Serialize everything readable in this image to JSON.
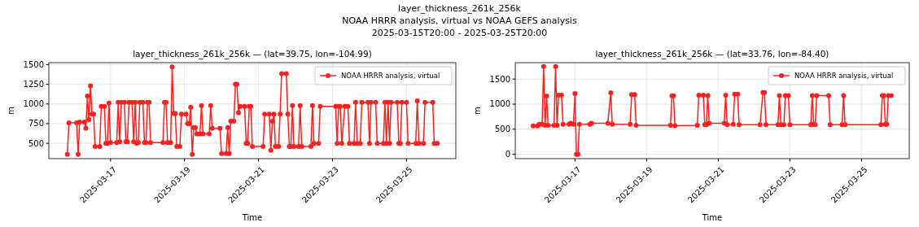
{
  "chart_data": [
    {
      "type": "line",
      "title": "layer_thickness_261k_256k — (lat=39.75, lon=-104.99)",
      "annotations": [
        "layer_thickness_261k_256k",
        "NOAA HRRR analysis, virtual vs NOAA GEFS analysis",
        "2025-03-15T20:00 - 2025-03-25T20:00"
      ],
      "xlabel": "Time",
      "ylabel": "m",
      "xlim": [
        "2025-03-15T08:00",
        "2025-03-26T08:00"
      ],
      "xticks": [
        "2025-03-17",
        "2025-03-19",
        "2025-03-21",
        "2025-03-23",
        "2025-03-25"
      ],
      "ylim": [
        305,
        1525
      ],
      "yticks": [
        500,
        750,
        1000,
        1250,
        1500
      ],
      "grid": true,
      "legend": "top right",
      "marker": "circle",
      "line_style": "solid",
      "series": [
        {
          "name": "NOAA HRRR analysis, virtual",
          "color": "#ff1f1f",
          "x": [
            "2025-03-15T20:00",
            "2025-03-15T21:00",
            "2025-03-16T02:00",
            "2025-03-16T03:00",
            "2025-03-16T04:00",
            "2025-03-16T07:00",
            "2025-03-16T08:00",
            "2025-03-16T09:00",
            "2025-03-16T10:00",
            "2025-03-16T11:00",
            "2025-03-16T12:00",
            "2025-03-16T13:00",
            "2025-03-16T14:00",
            "2025-03-16T17:00",
            "2025-03-16T18:00",
            "2025-03-16T20:00",
            "2025-03-16T21:00",
            "2025-03-16T22:00",
            "2025-03-16T23:00",
            "2025-03-17T00:00",
            "2025-03-17T04:00",
            "2025-03-17T05:00",
            "2025-03-17T06:00",
            "2025-03-17T07:00",
            "2025-03-17T09:00",
            "2025-03-17T10:00",
            "2025-03-17T11:00",
            "2025-03-17T12:00",
            "2025-03-17T14:00",
            "2025-03-17T15:00",
            "2025-03-17T16:00",
            "2025-03-17T17:00",
            "2025-03-17T18:00",
            "2025-03-17T19:00",
            "2025-03-17T21:00",
            "2025-03-17T22:00",
            "2025-03-17T23:00",
            "2025-03-18T00:00",
            "2025-03-18T01:00",
            "2025-03-18T02:00",
            "2025-03-18T10:00",
            "2025-03-18T11:00",
            "2025-03-18T12:00",
            "2025-03-18T13:00",
            "2025-03-18T15:00",
            "2025-03-18T16:00",
            "2025-03-18T17:00",
            "2025-03-18T18:00",
            "2025-03-18T19:00",
            "2025-03-18T21:00",
            "2025-03-18T22:00",
            "2025-03-19T01:00",
            "2025-03-19T02:00",
            "2025-03-19T03:00",
            "2025-03-19T04:00",
            "2025-03-19T05:00",
            "2025-03-19T06:00",
            "2025-03-19T07:00",
            "2025-03-19T08:00",
            "2025-03-19T10:00",
            "2025-03-19T11:00",
            "2025-03-19T12:00",
            "2025-03-19T16:00",
            "2025-03-19T17:00",
            "2025-03-19T18:00",
            "2025-03-19T23:00",
            "2025-03-20T00:00",
            "2025-03-20T03:00",
            "2025-03-20T04:00",
            "2025-03-20T05:00",
            "2025-03-20T06:00",
            "2025-03-20T08:00",
            "2025-03-20T09:00",
            "2025-03-20T10:00",
            "2025-03-20T11:00",
            "2025-03-20T12:00",
            "2025-03-20T15:00",
            "2025-03-20T16:00",
            "2025-03-20T17:00",
            "2025-03-20T18:00",
            "2025-03-20T19:00",
            "2025-03-20T20:00",
            "2025-03-21T03:00",
            "2025-03-21T04:00",
            "2025-03-21T07:00",
            "2025-03-21T08:00",
            "2025-03-21T09:00",
            "2025-03-21T10:00",
            "2025-03-21T11:00",
            "2025-03-21T13:00",
            "2025-03-21T14:00",
            "2025-03-21T15:00",
            "2025-03-21T18:00",
            "2025-03-21T19:00",
            "2025-03-21T20:00",
            "2025-03-21T21:00",
            "2025-03-21T22:00",
            "2025-03-21T23:00",
            "2025-03-22T02:00",
            "2025-03-22T03:00",
            "2025-03-22T04:00",
            "2025-03-22T10:00",
            "2025-03-22T11:00",
            "2025-03-22T12:00",
            "2025-03-22T15:00",
            "2025-03-22T16:00",
            "2025-03-23T02:00",
            "2025-03-23T03:00",
            "2025-03-23T04:00",
            "2025-03-23T05:00",
            "2025-03-23T06:00",
            "2025-03-23T08:00",
            "2025-03-23T10:00",
            "2025-03-23T11:00",
            "2025-03-23T14:00",
            "2025-03-23T15:00",
            "2025-03-23T16:00",
            "2025-03-23T18:00",
            "2025-03-23T19:00",
            "2025-03-23T23:00",
            "2025-03-24T00:00",
            "2025-03-24T01:00",
            "2025-03-24T04:00",
            "2025-03-24T05:00",
            "2025-03-24T09:00",
            "2025-03-24T10:00",
            "2025-03-24T11:00",
            "2025-03-24T12:00",
            "2025-03-24T13:00",
            "2025-03-24T14:00",
            "2025-03-24T18:00",
            "2025-03-24T19:00",
            "2025-03-24T20:00",
            "2025-03-24T21:00",
            "2025-03-25T00:00",
            "2025-03-25T01:00",
            "2025-03-25T06:00",
            "2025-03-25T07:00",
            "2025-03-25T08:00",
            "2025-03-25T11:00",
            "2025-03-25T12:00",
            "2025-03-25T17:00",
            "2025-03-25T18:00",
            "2025-03-25T20:00"
          ],
          "values": [
            360,
            760,
            760,
            360,
            770,
            770,
            690,
            1100,
            800,
            1230,
            870,
            870,
            460,
            460,
            970,
            970,
            500,
            500,
            1010,
            510,
            510,
            1020,
            520,
            1020,
            1020,
            520,
            520,
            1020,
            1020,
            520,
            1020,
            500,
            510,
            1020,
            1020,
            510,
            510,
            1020,
            1020,
            510,
            510,
            1020,
            1020,
            510,
            510,
            1470,
            880,
            880,
            460,
            460,
            870,
            870,
            750,
            750,
            960,
            360,
            700,
            700,
            620,
            620,
            980,
            620,
            620,
            980,
            690,
            690,
            370,
            370,
            700,
            370,
            780,
            780,
            1250,
            1250,
            890,
            970,
            970,
            500,
            500,
            970,
            970,
            460,
            460,
            870,
            870,
            410,
            780,
            870,
            460,
            460,
            870,
            1385,
            1385,
            870,
            460,
            460,
            980,
            460,
            460,
            980,
            460,
            460,
            980,
            500,
            500,
            970,
            970,
            500,
            970,
            970,
            500,
            970,
            970,
            500,
            500,
            1020,
            500,
            500,
            1020,
            1020,
            500,
            1020,
            1020,
            500,
            500,
            1020,
            500,
            1020,
            500,
            1020,
            1020,
            500,
            500,
            1020,
            1020,
            500,
            500,
            1040,
            500,
            500,
            1020,
            1020,
            500,
            500
          ]
        }
      ]
    },
    {
      "type": "line",
      "title": "layer_thickness_261k_256k — (lat=33.76, lon=-84.40)",
      "xlabel": "Time",
      "ylabel": "m",
      "xlim": [
        "2025-03-15T08:00",
        "2025-03-26T08:00"
      ],
      "xticks": [
        "2025-03-17",
        "2025-03-19",
        "2025-03-21",
        "2025-03-23",
        "2025-03-25"
      ],
      "ylim": [
        -87,
        1827
      ],
      "yticks": [
        0,
        500,
        1000,
        1500
      ],
      "grid": true,
      "legend": "top right",
      "marker": "circle",
      "line_style": "solid",
      "series": [
        {
          "name": "NOAA HRRR analysis, virtual",
          "color": "#ff1f1f",
          "x": [
            "2025-03-15T20:00",
            "2025-03-15T23:00",
            "2025-03-16T00:00",
            "2025-03-16T02:00",
            "2025-03-16T03:00",
            "2025-03-16T04:00",
            "2025-03-16T05:00",
            "2025-03-16T06:00",
            "2025-03-16T10:00",
            "2025-03-16T11:00",
            "2025-03-16T12:00",
            "2025-03-16T13:00",
            "2025-03-16T15:00",
            "2025-03-16T16:00",
            "2025-03-16T20:00",
            "2025-03-16T21:00",
            "2025-03-16T23:00",
            "2025-03-17T00:00",
            "2025-03-17T01:00",
            "2025-03-17T02:00",
            "2025-03-17T03:00",
            "2025-03-17T10:00",
            "2025-03-17T11:00",
            "2025-03-17T22:00",
            "2025-03-18T00:00",
            "2025-03-18T01:00",
            "2025-03-18T13:00",
            "2025-03-18T14:00",
            "2025-03-18T16:00",
            "2025-03-18T17:00",
            "2025-03-19T16:00",
            "2025-03-19T17:00",
            "2025-03-19T18:00",
            "2025-03-19T19:00",
            "2025-03-20T10:00",
            "2025-03-20T11:00",
            "2025-03-20T14:00",
            "2025-03-20T15:00",
            "2025-03-20T16:00",
            "2025-03-20T17:00",
            "2025-03-20T18:00",
            "2025-03-21T04:00",
            "2025-03-21T05:00",
            "2025-03-21T06:00",
            "2025-03-21T10:00",
            "2025-03-21T11:00",
            "2025-03-21T13:00",
            "2025-03-21T14:00",
            "2025-03-22T04:00",
            "2025-03-22T06:00",
            "2025-03-22T07:00",
            "2025-03-22T08:00",
            "2025-03-22T16:00",
            "2025-03-22T17:00",
            "2025-03-22T18:00",
            "2025-03-22T20:00",
            "2025-03-22T21:00",
            "2025-03-22T23:00",
            "2025-03-23T00:00",
            "2025-03-23T14:00",
            "2025-03-23T15:00",
            "2025-03-23T16:00",
            "2025-03-23T17:00",
            "2025-03-23T18:00",
            "2025-03-24T02:00",
            "2025-03-24T03:00",
            "2025-03-24T11:00",
            "2025-03-24T12:00",
            "2025-03-24T13:00",
            "2025-03-25T13:00",
            "2025-03-25T14:00",
            "2025-03-25T15:00",
            "2025-03-25T16:00",
            "2025-03-25T17:00",
            "2025-03-25T18:00",
            "2025-03-25T20:00"
          ],
          "values": [
            565,
            565,
            600,
            600,
            1750,
            580,
            1160,
            580,
            580,
            1750,
            580,
            1180,
            1180,
            600,
            600,
            620,
            600,
            1210,
            0,
            0,
            600,
            600,
            620,
            620,
            1225,
            600,
            600,
            1190,
            1190,
            580,
            580,
            1165,
            1165,
            570,
            580,
            1180,
            1180,
            590,
            590,
            1170,
            620,
            620,
            1180,
            590,
            600,
            1200,
            1200,
            590,
            590,
            1230,
            1230,
            590,
            590,
            1170,
            590,
            590,
            1170,
            1170,
            590,
            590,
            1170,
            600,
            590,
            1170,
            1170,
            590,
            590,
            1170,
            590,
            590,
            1170,
            1170,
            600,
            600,
            1170,
            1170
          ]
        }
      ]
    }
  ]
}
